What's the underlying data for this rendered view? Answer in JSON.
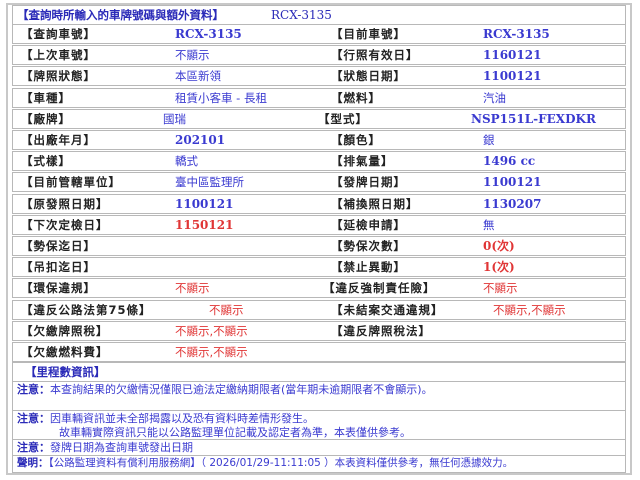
{
  "header": {
    "title": "【查詢時所輸入的車牌號碼與額外資料】",
    "plate": "RCX-3135"
  },
  "rows": [
    {
      "l1": "【查詢車號】",
      "v1": "RCX-3135",
      "c1": "blue",
      "l2": "【目前車號】",
      "v2": "RCX-3135",
      "c2": "blue"
    },
    {
      "l1": "【上次車號】",
      "v1": "不顯示",
      "c1": "blue",
      "l2": "【行照有效日】",
      "v2": "1160121",
      "c2": "blue"
    },
    {
      "l1": "【牌照狀態】",
      "v1": "本區新領",
      "c1": "blue",
      "l2": "【狀態日期】",
      "v2": "1100121",
      "c2": "blue"
    },
    {
      "l1": "【車種】",
      "v1": "租賃小客車 - 長租",
      "c1": "blue",
      "l2": "【燃料】",
      "v2": "汽油",
      "c2": "blue"
    },
    {
      "l1": "【廠牌】",
      "v1": "國瑞",
      "c1": "blue",
      "l2": "【型式】",
      "v2": "NSP151L-FEXDKR",
      "c2": "blue"
    },
    {
      "l1": "【出廠年月】",
      "v1": "202101",
      "c1": "blue",
      "l2": "【顏色】",
      "v2": "銀",
      "c2": "blue"
    },
    {
      "l1": "【式樣】",
      "v1": "轎式",
      "c1": "blue",
      "l2": "【排氣量】",
      "v2": "1496 cc",
      "c2": "blue"
    },
    {
      "l1": "【目前管轄單位】",
      "v1": "臺中區監理所",
      "c1": "blue",
      "l2": "【發牌日期】",
      "v2": "1100121",
      "c2": "blue"
    },
    {
      "l1": "【原發照日期】",
      "v1": "1100121",
      "c1": "blue",
      "l2": "【補換照日期】",
      "v2": "1130207",
      "c2": "blue"
    },
    {
      "l1": "【下次定檢日】",
      "v1": "1150121",
      "c1": "red",
      "l2": "【延檢申請】",
      "v2": "無",
      "c2": "blue"
    },
    {
      "l1": "【勢保迄日】",
      "v1": "",
      "c1": "blue",
      "l2": "【勢保次數】",
      "v2": "0(次)",
      "c2": "red"
    },
    {
      "l1": "【吊扣迄日】",
      "v1": "",
      "c1": "blue",
      "l2": "【禁止異動】",
      "v2": "1(次)",
      "c2": "red"
    },
    {
      "l1": "【環保違規】",
      "v1": "不顯示",
      "c1": "red",
      "l2": "【違反強制責任險】",
      "v2": "不顯示",
      "c2": "red"
    },
    {
      "l1": "【違反公路法第75條】",
      "v1": "不顯示",
      "c1": "red",
      "l2": "【未結案交通違規】",
      "v2": "不顯示,不顯示",
      "c2": "red"
    },
    {
      "l1": "【欠繳牌照稅】",
      "v1": "不顯示,不顯示",
      "c1": "red",
      "l2": "【違反牌照稅法】",
      "v2": "",
      "c2": "blue"
    },
    {
      "l1": "【欠繳燃料費】",
      "v1": "不顯示,不顯示",
      "c1": "red",
      "l2": "",
      "v2": "",
      "c2": "blue"
    }
  ],
  "mileage": "【里程數資訊】",
  "notes": [
    {
      "label": "注意：",
      "text": "本查詢結果的欠繳情況僅限已逾法定繳納期限者(當年期未逾期限者不會顯示)。"
    },
    {
      "label": "注意：",
      "text": "因車輛資訊並未全部揭露以及恐有資料時差情形發生。",
      "text2": "故車輛實際資訊只能以公路監理單位記載及認定者為準，本表僅供參考。"
    },
    {
      "label": "注意：",
      "text": "發牌日期為查詢車號發出日期"
    },
    {
      "label": "聲明：",
      "text": "【公路監理資料有償利用服務網】（ 2026/01/29-11:11:05 ）本表資料僅供參考，無任何憑據效力。"
    }
  ],
  "colors": {
    "blue": "#3a3ad0",
    "red": "#e03535",
    "border": "#b8b8b8"
  }
}
